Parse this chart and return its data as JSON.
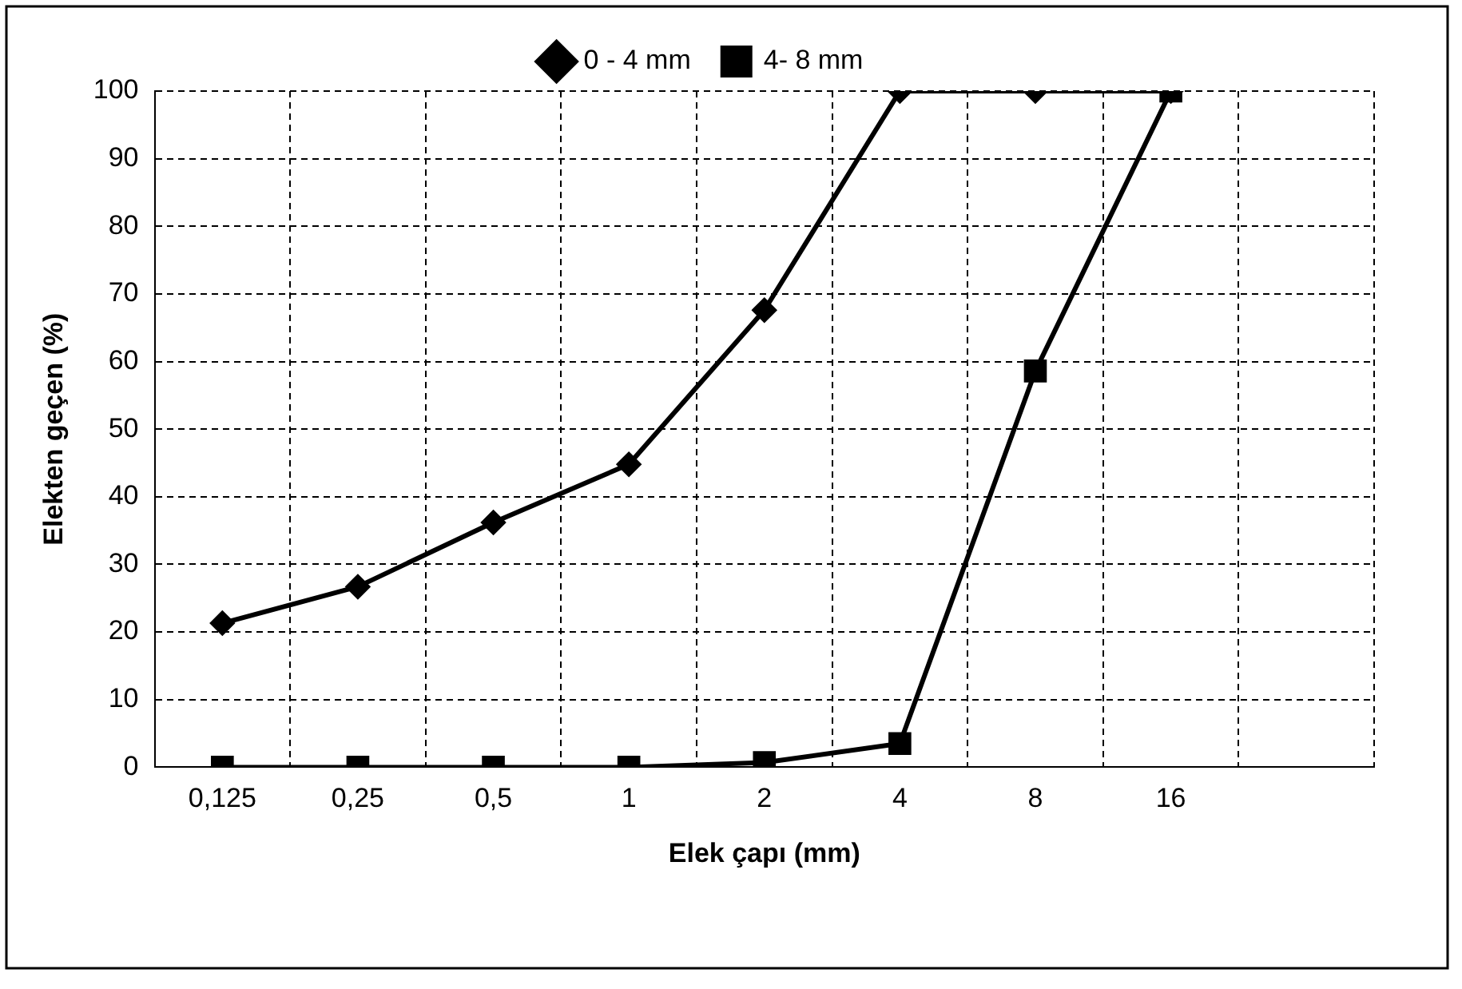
{
  "chart_data": {
    "type": "line",
    "xlabel": "Elek çapı (mm)",
    "ylabel": "Elekten geçen (%)",
    "categories": [
      "0,125",
      "0,25",
      "0,5",
      "1",
      "2",
      "4",
      "8",
      "16",
      null
    ],
    "series": [
      {
        "name": "0 - 4 mm",
        "color": "#000000",
        "marker": "diamond",
        "values": [
          21.3,
          26.7,
          36.2,
          44.8,
          67.6,
          100,
          100,
          100,
          null
        ]
      },
      {
        "name": "4- 8 mm",
        "color": "#000000",
        "marker": "square",
        "values": [
          0,
          0,
          0,
          0,
          0.7,
          3.5,
          58.6,
          100,
          null
        ]
      }
    ],
    "ylim": [
      0,
      100
    ],
    "yticks": [
      0,
      10,
      20,
      30,
      40,
      50,
      60,
      70,
      80,
      90,
      100
    ],
    "grid": true,
    "legend": "top",
    "line_style": "solid"
  }
}
